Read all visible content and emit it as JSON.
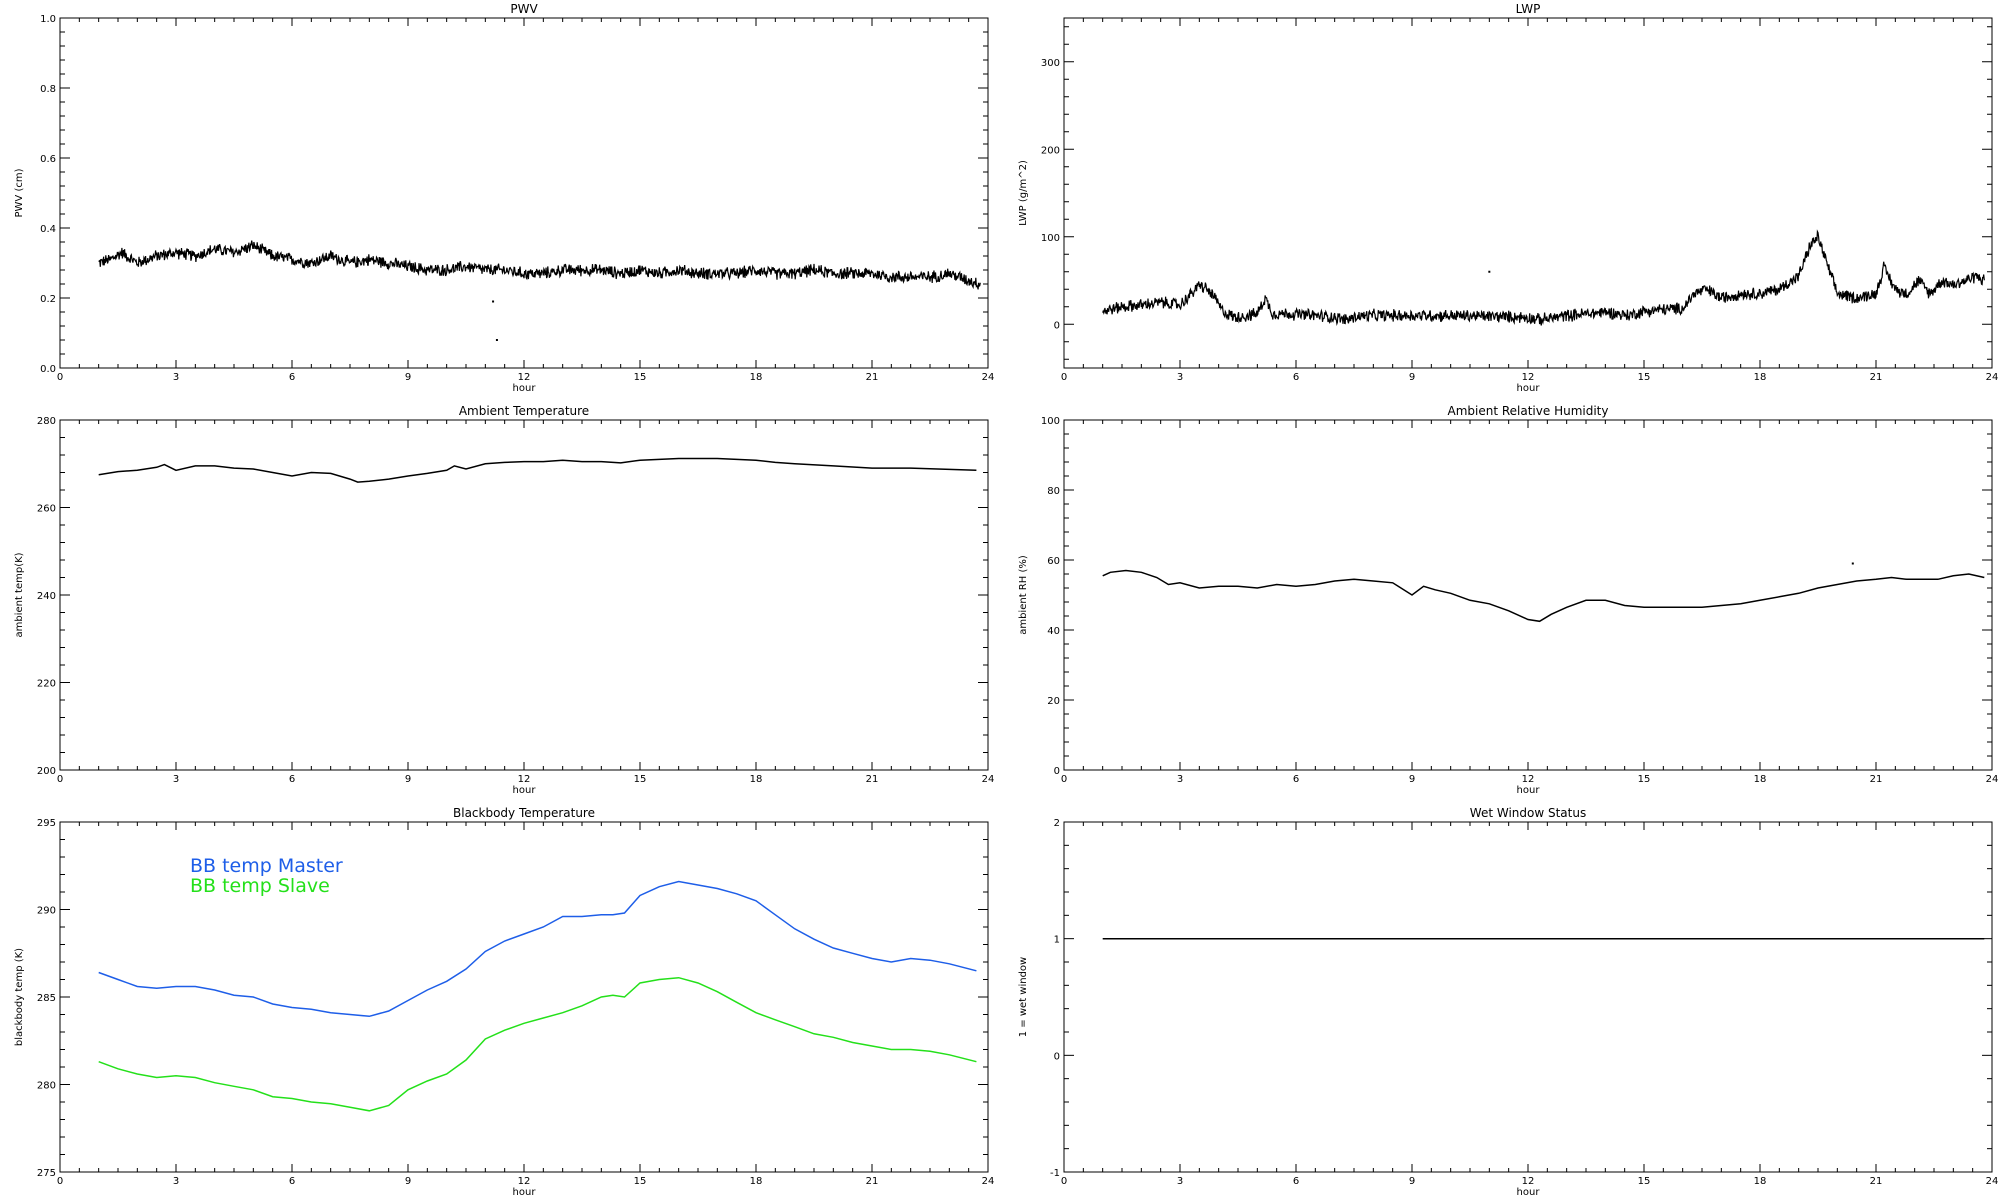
{
  "chart_data": [
    {
      "id": "pwv",
      "type": "scatter",
      "title": "PWV",
      "xlabel": "hour",
      "ylabel": "PWV (cm)",
      "xlim": [
        0,
        24
      ],
      "ylim": [
        0.0,
        1.0
      ],
      "xticks": [
        0,
        3,
        6,
        9,
        12,
        15,
        18,
        21,
        24
      ],
      "yticks": [
        0.0,
        0.2,
        0.4,
        0.6,
        0.8,
        1.0
      ],
      "ytick_labels": [
        "0.0",
        "0.2",
        "0.4",
        "0.6",
        "0.8",
        "1.0"
      ],
      "noise": 0.01,
      "series": [
        {
          "color": "#000000",
          "x": [
            1.0,
            1.3,
            1.6,
            2.0,
            2.5,
            3.0,
            3.5,
            4.0,
            4.5,
            5.0,
            5.5,
            6.0,
            6.5,
            7.0,
            7.5,
            8.0,
            8.5,
            9.0,
            9.5,
            10.0,
            10.5,
            11.0,
            11.5,
            12.0,
            12.5,
            13.0,
            13.5,
            14.0,
            14.5,
            15.0,
            15.5,
            16.0,
            16.5,
            17.0,
            17.5,
            18.0,
            18.5,
            19.0,
            19.5,
            20.0,
            20.5,
            21.0,
            21.5,
            22.0,
            22.5,
            23.0,
            23.5,
            23.8
          ],
          "y": [
            0.3,
            0.31,
            0.33,
            0.3,
            0.32,
            0.33,
            0.32,
            0.34,
            0.33,
            0.35,
            0.32,
            0.31,
            0.3,
            0.32,
            0.3,
            0.31,
            0.3,
            0.29,
            0.28,
            0.28,
            0.29,
            0.28,
            0.28,
            0.27,
            0.27,
            0.28,
            0.28,
            0.28,
            0.27,
            0.28,
            0.27,
            0.28,
            0.27,
            0.27,
            0.27,
            0.28,
            0.27,
            0.27,
            0.28,
            0.27,
            0.27,
            0.27,
            0.26,
            0.26,
            0.26,
            0.27,
            0.25,
            0.24
          ]
        },
        {
          "color": "#000000",
          "x": [
            11.2,
            11.3
          ],
          "y": [
            0.19,
            0.08
          ]
        }
      ]
    },
    {
      "id": "lwp",
      "type": "scatter",
      "title": "LWP",
      "xlabel": "hour",
      "ylabel": "LWP (g/m^2)",
      "xlim": [
        0,
        24
      ],
      "ylim": [
        -50,
        350
      ],
      "xticks": [
        0,
        3,
        6,
        9,
        12,
        15,
        18,
        21,
        24
      ],
      "yticks": [
        0,
        100,
        200,
        300
      ],
      "ytick_labels": [
        "0",
        "100",
        "200",
        "300"
      ],
      "noise": 4,
      "series": [
        {
          "color": "#000000",
          "x": [
            1.0,
            1.5,
            2.0,
            2.5,
            3.0,
            3.3,
            3.5,
            3.7,
            3.9,
            4.1,
            4.4,
            4.8,
            5.0,
            5.2,
            5.4,
            5.8,
            6.5,
            7.0,
            7.3,
            7.6,
            8.0,
            9.0,
            10.0,
            11.0,
            12.0,
            12.3,
            13.0,
            14.0,
            14.6,
            15.0,
            15.5,
            16.0,
            16.3,
            16.6,
            17.0,
            17.5,
            18.0,
            18.5,
            19.0,
            19.3,
            19.5,
            19.8,
            20.0,
            20.5,
            21.0,
            21.2,
            21.5,
            21.8,
            22.1,
            22.4,
            22.7,
            23.0,
            23.3,
            23.6,
            23.8
          ],
          "y": [
            15,
            20,
            22,
            25,
            22,
            35,
            45,
            40,
            30,
            15,
            8,
            10,
            12,
            30,
            12,
            12,
            10,
            8,
            5,
            9,
            10,
            10,
            10,
            9,
            8,
            5,
            10,
            14,
            10,
            15,
            17,
            18,
            35,
            40,
            30,
            35,
            35,
            40,
            55,
            90,
            100,
            60,
            35,
            30,
            35,
            65,
            40,
            35,
            50,
            35,
            50,
            45,
            50,
            55,
            50
          ]
        },
        {
          "color": "#000000",
          "x": [
            11.0
          ],
          "y": [
            60
          ]
        }
      ]
    },
    {
      "id": "ambient-temp",
      "type": "line",
      "title": "Ambient Temperature",
      "xlabel": "hour",
      "ylabel": "ambient temp(K)",
      "xlim": [
        0,
        24
      ],
      "ylim": [
        200,
        280
      ],
      "xticks": [
        0,
        3,
        6,
        9,
        12,
        15,
        18,
        21,
        24
      ],
      "yticks": [
        200,
        220,
        240,
        260,
        280
      ],
      "ytick_labels": [
        "200",
        "220",
        "240",
        "260",
        "280"
      ],
      "noise": 0,
      "series": [
        {
          "color": "#000000",
          "x": [
            1.0,
            1.5,
            2.0,
            2.5,
            2.7,
            3.0,
            3.5,
            4.0,
            4.5,
            5.0,
            5.5,
            6.0,
            6.5,
            7.0,
            7.5,
            7.7,
            8.0,
            8.5,
            9.0,
            9.5,
            10.0,
            10.2,
            10.5,
            11.0,
            11.5,
            12.0,
            12.5,
            13.0,
            13.5,
            14.0,
            14.5,
            15.0,
            15.5,
            16.0,
            16.5,
            17.0,
            17.5,
            18.0,
            18.5,
            19.0,
            20.0,
            21.0,
            22.0,
            23.0,
            23.7
          ],
          "y": [
            267.5,
            268.2,
            268.5,
            269.2,
            269.8,
            268.5,
            269.5,
            269.5,
            269.0,
            268.8,
            268.0,
            267.2,
            268.0,
            267.8,
            266.5,
            265.8,
            266.0,
            266.5,
            267.2,
            267.8,
            268.5,
            269.5,
            268.8,
            270.0,
            270.3,
            270.5,
            270.5,
            270.8,
            270.5,
            270.5,
            270.2,
            270.8,
            271.0,
            271.2,
            271.2,
            271.2,
            271.0,
            270.8,
            270.3,
            270.0,
            269.5,
            269.0,
            269.0,
            268.7,
            268.5
          ]
        }
      ]
    },
    {
      "id": "ambient-rh",
      "type": "line",
      "title": "Ambient Relative Humidity",
      "xlabel": "hour",
      "ylabel": "ambient RH (%)",
      "xlim": [
        0,
        24
      ],
      "ylim": [
        0,
        100
      ],
      "xticks": [
        0,
        3,
        6,
        9,
        12,
        15,
        18,
        21,
        24
      ],
      "yticks": [
        0,
        20,
        40,
        60,
        80,
        100
      ],
      "ytick_labels": [
        "0",
        "20",
        "40",
        "60",
        "80",
        "100"
      ],
      "noise": 0,
      "series": [
        {
          "color": "#000000",
          "x": [
            1.0,
            1.2,
            1.6,
            2.0,
            2.4,
            2.7,
            3.0,
            3.5,
            4.0,
            4.5,
            5.0,
            5.5,
            6.0,
            6.5,
            7.0,
            7.5,
            8.0,
            8.5,
            9.0,
            9.3,
            9.6,
            10.0,
            10.5,
            11.0,
            11.5,
            12.0,
            12.3,
            12.6,
            13.0,
            13.5,
            14.0,
            14.5,
            15.0,
            15.5,
            16.0,
            16.5,
            17.0,
            17.5,
            18.0,
            18.5,
            19.0,
            19.5,
            20.0,
            20.5,
            21.0,
            21.4,
            21.8,
            22.2,
            22.6,
            23.0,
            23.4,
            23.8
          ],
          "y": [
            55.5,
            56.5,
            57.0,
            56.5,
            55.0,
            53.0,
            53.5,
            52.0,
            52.5,
            52.5,
            52.0,
            53.0,
            52.5,
            53.0,
            54.0,
            54.5,
            54.0,
            53.5,
            50.0,
            52.5,
            51.5,
            50.5,
            48.5,
            47.5,
            45.5,
            43.0,
            42.5,
            44.5,
            46.5,
            48.5,
            48.5,
            47.0,
            46.5,
            46.5,
            46.5,
            46.5,
            47.0,
            47.5,
            48.5,
            49.5,
            50.5,
            52.0,
            53.0,
            54.0,
            54.5,
            55.0,
            54.5,
            54.5,
            54.5,
            55.5,
            56.0,
            55.0
          ]
        },
        {
          "color": "#000000",
          "x": [
            20.4
          ],
          "y": [
            59
          ]
        }
      ]
    },
    {
      "id": "blackbody-temp",
      "type": "line",
      "title": "Blackbody Temperature",
      "xlabel": "hour",
      "ylabel": "blackbody temp (K)",
      "xlim": [
        0,
        24
      ],
      "ylim": [
        275,
        295
      ],
      "xticks": [
        0,
        3,
        6,
        9,
        12,
        15,
        18,
        21,
        24
      ],
      "yticks": [
        275,
        280,
        285,
        290,
        295
      ],
      "ytick_labels": [
        "275",
        "280",
        "285",
        "290",
        "295"
      ],
      "noise": 0,
      "legend": [
        "BB temp Master",
        "BB temp Slave"
      ],
      "series": [
        {
          "name": "BB temp Master",
          "color": "#1e5ee8",
          "x": [
            1.0,
            1.5,
            2.0,
            2.5,
            3.0,
            3.5,
            4.0,
            4.5,
            5.0,
            5.5,
            6.0,
            6.5,
            7.0,
            7.5,
            8.0,
            8.5,
            9.0,
            9.5,
            10.0,
            10.5,
            11.0,
            11.5,
            12.0,
            12.5,
            13.0,
            13.5,
            14.0,
            14.3,
            14.6,
            15.0,
            15.5,
            16.0,
            16.5,
            17.0,
            17.5,
            18.0,
            18.5,
            19.0,
            19.5,
            20.0,
            20.5,
            21.0,
            21.5,
            22.0,
            22.5,
            23.0,
            23.7
          ],
          "y": [
            286.4,
            286.0,
            285.6,
            285.5,
            285.6,
            285.6,
            285.4,
            285.1,
            285.0,
            284.6,
            284.4,
            284.3,
            284.1,
            284.0,
            283.9,
            284.2,
            284.8,
            285.4,
            285.9,
            286.6,
            287.6,
            288.2,
            288.6,
            289.0,
            289.6,
            289.6,
            289.7,
            289.7,
            289.8,
            290.8,
            291.3,
            291.6,
            291.4,
            291.2,
            290.9,
            290.5,
            289.7,
            288.9,
            288.3,
            287.8,
            287.5,
            287.2,
            287.0,
            287.2,
            287.1,
            286.9,
            286.5
          ]
        },
        {
          "name": "BB temp Slave",
          "color": "#24e01a",
          "x": [
            1.0,
            1.5,
            2.0,
            2.5,
            3.0,
            3.5,
            4.0,
            4.5,
            5.0,
            5.5,
            6.0,
            6.5,
            7.0,
            7.5,
            8.0,
            8.5,
            9.0,
            9.5,
            10.0,
            10.5,
            11.0,
            11.5,
            12.0,
            12.5,
            13.0,
            13.5,
            14.0,
            14.3,
            14.6,
            15.0,
            15.5,
            16.0,
            16.5,
            17.0,
            17.5,
            18.0,
            18.5,
            19.0,
            19.5,
            20.0,
            20.5,
            21.0,
            21.5,
            22.0,
            22.5,
            23.0,
            23.7
          ],
          "y": [
            281.3,
            280.9,
            280.6,
            280.4,
            280.5,
            280.4,
            280.1,
            279.9,
            279.7,
            279.3,
            279.2,
            279.0,
            278.9,
            278.7,
            278.5,
            278.8,
            279.7,
            280.2,
            280.6,
            281.4,
            282.6,
            283.1,
            283.5,
            283.8,
            284.1,
            284.5,
            285.0,
            285.1,
            285.0,
            285.8,
            286.0,
            286.1,
            285.8,
            285.3,
            284.7,
            284.1,
            283.7,
            283.3,
            282.9,
            282.7,
            282.4,
            282.2,
            282.0,
            282.0,
            281.9,
            281.7,
            281.3
          ]
        }
      ]
    },
    {
      "id": "wet-window",
      "type": "line",
      "title": "Wet Window Status",
      "xlabel": "hour",
      "ylabel": "1 = wet window",
      "xlim": [
        0,
        24
      ],
      "ylim": [
        -1,
        2
      ],
      "xticks": [
        0,
        3,
        6,
        9,
        12,
        15,
        18,
        21,
        24
      ],
      "yticks": [
        -1,
        0,
        1,
        2
      ],
      "ytick_labels": [
        "-1",
        "0",
        "1",
        "2"
      ],
      "noise": 0,
      "series": [
        {
          "color": "#000000",
          "x": [
            1.0,
            23.8
          ],
          "y": [
            1,
            1
          ]
        }
      ]
    }
  ]
}
